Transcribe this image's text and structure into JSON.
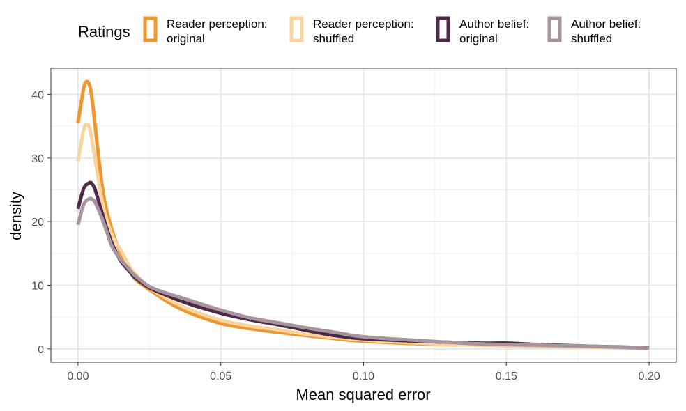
{
  "chart_data": {
    "type": "line",
    "subtype": "density",
    "title": "",
    "xlabel": "Mean squared error",
    "ylabel": "density",
    "xlim": [
      -0.0095,
      0.2095
    ],
    "ylim": [
      -2.1,
      44.1
    ],
    "x_ticks": [
      0,
      0.05,
      0.1,
      0.15,
      0.2
    ],
    "x_tick_labels": [
      "0.00",
      "0.05",
      "0.10",
      "0.15",
      "0.20"
    ],
    "y_ticks": [
      0,
      10,
      20,
      30,
      40
    ],
    "y_tick_labels": [
      "0",
      "10",
      "20",
      "30",
      "40"
    ],
    "grid": true,
    "legend": {
      "title": "Ratings",
      "position": "top"
    },
    "series": [
      {
        "name": "Reader perception:\noriginal",
        "label_lines": [
          "Reader perception:",
          "original"
        ],
        "color": "#F0962E",
        "x": [
          0,
          0.002,
          0.003,
          0.004,
          0.005,
          0.007,
          0.009,
          0.012,
          0.015,
          0.018,
          0.02,
          0.025,
          0.03,
          0.035,
          0.04,
          0.05,
          0.06,
          0.07,
          0.08,
          0.09,
          0.1,
          0.12,
          0.14,
          0.16,
          0.18,
          0.2
        ],
        "y": [
          35.5,
          41.0,
          42.0,
          41.5,
          39.0,
          31.0,
          24.0,
          18.5,
          15.0,
          12.5,
          11.0,
          9.3,
          7.8,
          6.5,
          5.5,
          4.0,
          3.2,
          2.6,
          2.1,
          1.6,
          1.2,
          0.8,
          0.6,
          0.4,
          0.3,
          0.1
        ]
      },
      {
        "name": "Reader perception:\nshuffled",
        "label_lines": [
          "Reader perception:",
          "shuffled"
        ],
        "color": "#F8D49E",
        "x": [
          0,
          0.002,
          0.003,
          0.004,
          0.005,
          0.007,
          0.009,
          0.012,
          0.015,
          0.018,
          0.02,
          0.025,
          0.03,
          0.035,
          0.04,
          0.05,
          0.06,
          0.07,
          0.08,
          0.09,
          0.1,
          0.12,
          0.14,
          0.16,
          0.18,
          0.2
        ],
        "y": [
          29.5,
          34.5,
          35.3,
          34.8,
          32.5,
          27.0,
          22.0,
          17.8,
          15.5,
          13.0,
          11.8,
          9.6,
          8.2,
          7.0,
          6.0,
          4.5,
          3.6,
          3.0,
          2.3,
          1.8,
          1.4,
          0.9,
          0.6,
          0.4,
          0.3,
          0.1
        ]
      },
      {
        "name": "Author belief:\noriginal",
        "label_lines": [
          "Author belief:",
          "original"
        ],
        "color": "#4E2A48",
        "x": [
          0,
          0.002,
          0.004,
          0.005,
          0.006,
          0.008,
          0.01,
          0.012,
          0.015,
          0.018,
          0.02,
          0.025,
          0.03,
          0.035,
          0.04,
          0.05,
          0.06,
          0.07,
          0.08,
          0.09,
          0.1,
          0.12,
          0.14,
          0.15,
          0.16,
          0.18,
          0.2
        ],
        "y": [
          22.0,
          25.2,
          26.1,
          25.9,
          25.0,
          22.0,
          19.0,
          16.5,
          13.8,
          12.2,
          11.2,
          9.6,
          8.6,
          7.7,
          6.9,
          5.6,
          4.6,
          3.8,
          2.9,
          2.1,
          1.6,
          1.2,
          0.9,
          0.9,
          0.7,
          0.4,
          0.2
        ]
      },
      {
        "name": "Author belief:\nshuffled",
        "label_lines": [
          "Author belief:",
          "shuffled"
        ],
        "color": "#A8949E",
        "x": [
          0,
          0.002,
          0.004,
          0.005,
          0.006,
          0.008,
          0.01,
          0.012,
          0.015,
          0.018,
          0.02,
          0.025,
          0.03,
          0.035,
          0.04,
          0.05,
          0.06,
          0.07,
          0.08,
          0.09,
          0.1,
          0.12,
          0.14,
          0.16,
          0.18,
          0.2
        ],
        "y": [
          19.5,
          22.7,
          23.6,
          23.5,
          23.0,
          21.0,
          18.5,
          16.0,
          14.0,
          12.5,
          11.5,
          9.8,
          8.9,
          8.2,
          7.5,
          6.1,
          4.9,
          4.1,
          3.3,
          2.6,
          1.9,
          1.3,
          0.8,
          0.6,
          0.4,
          0.1
        ]
      }
    ]
  }
}
